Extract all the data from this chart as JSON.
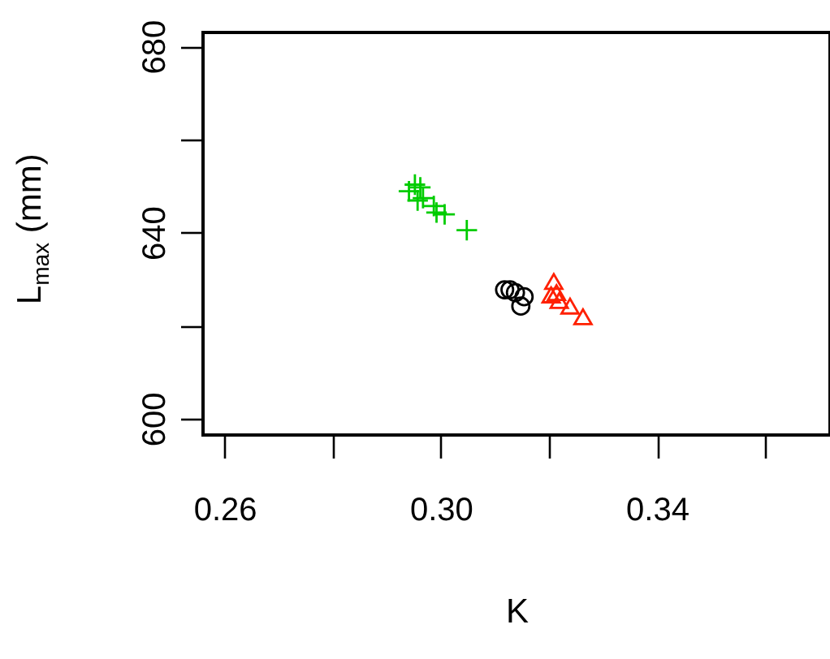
{
  "chart_data": {
    "type": "scatter",
    "xlabel": "K",
    "ylabel": "L$_{max}$ (mm)",
    "xlim": [
      0.256,
      0.372
    ],
    "ylim": [
      596.5,
      683
    ],
    "xticks": [
      0.26,
      {
        "value": 0.28,
        "label": null
      },
      {
        "value": 0.3,
        "label": "0.30"
      },
      {
        "value": 0.32,
        "label": null
      },
      0.34,
      {
        "value": 0.36,
        "label": null
      }
    ],
    "yticks": [
      600,
      {
        "value": 620,
        "label": null
      },
      640,
      {
        "value": 660,
        "label": null
      },
      680
    ],
    "grid": false,
    "series": [
      {
        "color": "#00cc00",
        "marker": "cross",
        "x": [
          0.2952,
          0.2962,
          0.2941,
          0.2967,
          0.2987,
          0.2992,
          0.3007,
          0.3048,
          0.2957
        ],
        "values": [
          650.3,
          649.7,
          648.9,
          647.4,
          645.7,
          644.3,
          643.9,
          640.5,
          646.9
        ]
      },
      {
        "color": "#000000",
        "marker": "circle",
        "x": [
          0.3128,
          0.3138,
          0.3154,
          0.3148,
          0.3118
        ],
        "values": [
          627.7,
          627.1,
          626.2,
          624.2,
          627.7
        ]
      },
      {
        "color": "#ff2000",
        "marker": "triangle",
        "x": [
          0.3209,
          0.3214,
          0.3219,
          0.3239,
          0.3263,
          0.3204
        ],
        "values": [
          629.5,
          627.1,
          625.4,
          624.2,
          621.9,
          626.6
        ]
      }
    ]
  }
}
